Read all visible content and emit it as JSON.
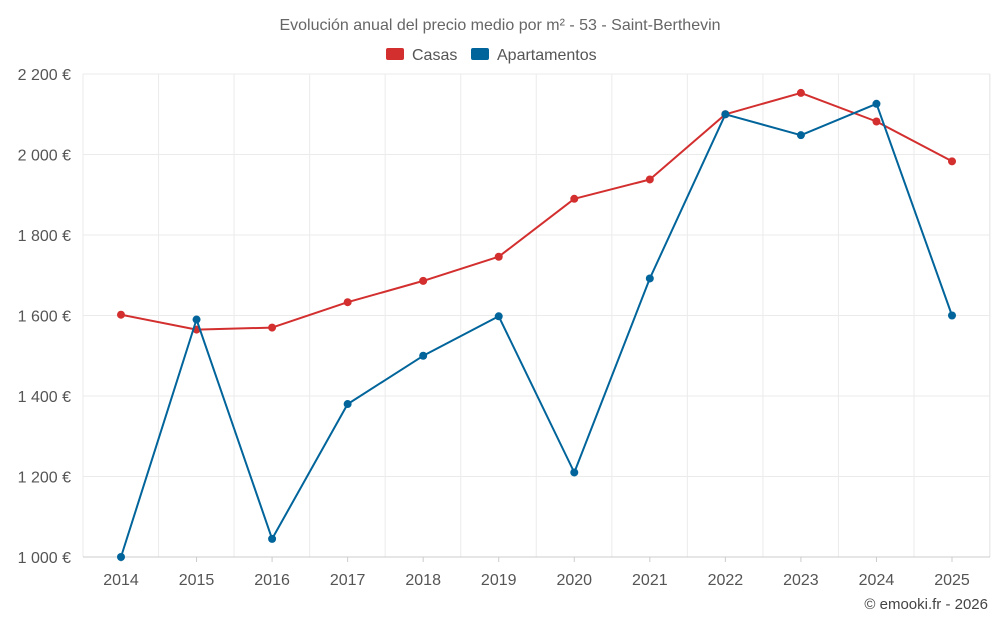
{
  "chart_data": {
    "type": "line",
    "title": "Evolución anual del precio medio por m² - 53 - Saint-Berthevin",
    "categories": [
      "2014",
      "2015",
      "2016",
      "2017",
      "2018",
      "2019",
      "2020",
      "2021",
      "2022",
      "2023",
      "2024",
      "2025"
    ],
    "series": [
      {
        "name": "Casas",
        "color": "#d32f2f",
        "values": [
          1602,
          1565,
          1570,
          1633,
          1686,
          1746,
          1890,
          1938,
          2100,
          2153,
          2082,
          1983
        ]
      },
      {
        "name": "Apartamentos",
        "color": "#01649a",
        "values": [
          1000,
          1590,
          1045,
          1380,
          1500,
          1598,
          1210,
          1692,
          2100,
          2048,
          2126,
          1600
        ]
      }
    ],
    "y_ticks": [
      1000,
      1200,
      1400,
      1600,
      1800,
      2000,
      2200
    ],
    "y_tick_labels": [
      "1 000 €",
      "1 200 €",
      "1 400 €",
      "1 600 €",
      "1 800 €",
      "2 000 €",
      "2 200 €"
    ],
    "ylim": [
      1000,
      2200
    ],
    "xlabel": "",
    "ylabel": "",
    "grid": true,
    "legend_position": "top-center"
  },
  "credit": "© emooki.fr - 2026"
}
